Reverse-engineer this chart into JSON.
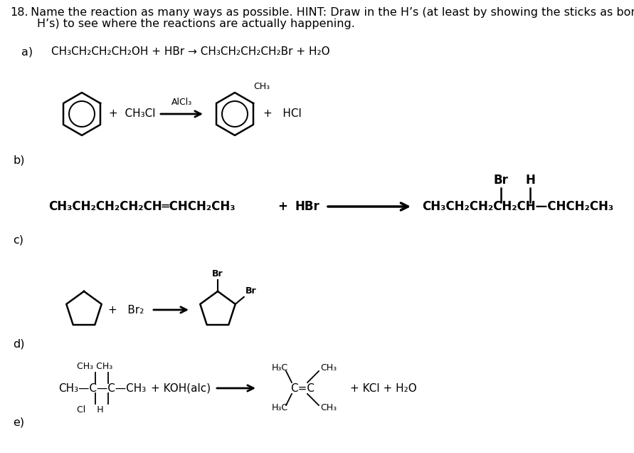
{
  "background": "#ffffff",
  "title_num": "18.",
  "title_line1": " Name the reaction as many ways as possible. HINT: Draw in the H’s (at least by showing the sticks as bonds to",
  "title_line2": "H’s) to see where the reactions are actually happening.",
  "label_a": "a)",
  "label_b": "b)",
  "label_c": "c)",
  "label_d": "d)",
  "label_e": "e)",
  "rxn_a": "CH₃CH₂CH₂CH₂OH + HBr → CH₃CH₂CH₂CH₂Br + H₂O",
  "rxn_b_reagent": "+  CH₃Cl",
  "rxn_b_catalyst": "AlCl₃",
  "rxn_b_hcl": "+   HCl",
  "rxn_b_ch3": "CH₃",
  "rxn_c_left": "CH₃CH₂CH₂CH₂CH═CHCH₂CH₃",
  "rxn_c_plus": "+",
  "rxn_c_hbr": "HBr",
  "rxn_c_right": "CH₃CH₂CH₂CH₂CH—CHCH₂CH₃",
  "rxn_c_br_label": "Br",
  "rxn_c_h_label": "H",
  "rxn_d_plus_br2": "+   Br₂",
  "rxn_d_br_top": "Br",
  "rxn_d_br_side": "Br",
  "rxn_e_ch3_top": "CH₃ CH₃",
  "rxn_e_main": "CH₃—C—C—CH₃",
  "rxn_e_bot": "Cl    H",
  "rxn_e_koh": "+ KOH(alc)",
  "rxn_e_prod2": "+ KCl + H₂O",
  "rxn_e_h3c": "H₃C",
  "rxn_e_ch3r": "CH₃",
  "rxn_e_cc": "C=C"
}
